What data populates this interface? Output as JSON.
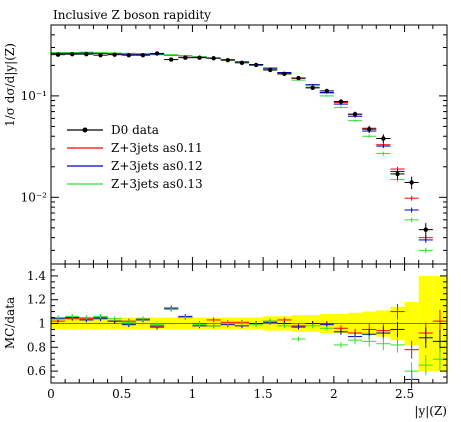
{
  "chart_data": [
    {
      "type": "scatter",
      "title": "Inclusive Z boson rapidity",
      "xlabel": "",
      "ylabel": "1/σ dσ/d|y|(Z)",
      "yscale": "log",
      "xlim": [
        0,
        2.8
      ],
      "ylim": [
        0.0022,
        0.5
      ],
      "y_ticks": [
        {
          "value": 0.1,
          "label": "10⁻¹"
        },
        {
          "value": 0.01,
          "label": "10⁻²"
        }
      ],
      "legend_position": "left",
      "x": [
        0.05,
        0.15,
        0.25,
        0.35,
        0.45,
        0.55,
        0.65,
        0.75,
        0.85,
        0.95,
        1.05,
        1.15,
        1.25,
        1.35,
        1.45,
        1.55,
        1.65,
        1.75,
        1.85,
        1.95,
        2.05,
        2.15,
        2.25,
        2.35,
        2.45,
        2.55,
        2.65,
        2.75
      ],
      "series": [
        {
          "name": "D0 data",
          "color": "#000000",
          "marker": "dot",
          "values": [
            0.255,
            0.258,
            0.258,
            0.252,
            0.255,
            0.252,
            0.252,
            0.262,
            0.228,
            0.238,
            0.238,
            0.235,
            0.225,
            0.212,
            0.202,
            0.18,
            0.165,
            0.15,
            0.12,
            0.112,
            0.088,
            0.066,
            0.047,
            0.038,
            0.017,
            0.014,
            0.0048,
            null
          ]
        },
        {
          "name": "Z+3jets as0.11",
          "color": "#ff0000",
          "marker": "cross",
          "values": [
            0.262,
            0.262,
            0.264,
            0.262,
            0.26,
            0.258,
            0.257,
            0.255,
            0.252,
            0.248,
            0.243,
            0.236,
            0.227,
            0.216,
            0.203,
            0.187,
            0.169,
            0.149,
            0.128,
            0.107,
            0.086,
            0.066,
            0.048,
            0.033,
            0.019,
            0.0098,
            0.004,
            null
          ]
        },
        {
          "name": "Z+3jets as0.12",
          "color": "#0000cc",
          "marker": "cross",
          "values": [
            0.264,
            0.264,
            0.266,
            0.263,
            0.261,
            0.259,
            0.258,
            0.256,
            0.253,
            0.249,
            0.244,
            0.237,
            0.228,
            0.217,
            0.204,
            0.188,
            0.17,
            0.15,
            0.129,
            0.108,
            0.083,
            0.063,
            0.045,
            0.032,
            0.018,
            0.0075,
            0.0038,
            null
          ]
        },
        {
          "name": "Z+3jets as0.13",
          "color": "#33dd33",
          "marker": "cross",
          "values": [
            0.268,
            0.268,
            0.27,
            0.267,
            0.265,
            0.263,
            0.262,
            0.259,
            0.255,
            0.25,
            0.244,
            0.236,
            0.226,
            0.214,
            0.2,
            0.183,
            0.164,
            0.143,
            0.122,
            0.1,
            0.077,
            0.057,
            0.04,
            0.027,
            0.015,
            0.006,
            0.003,
            null
          ]
        }
      ]
    },
    {
      "type": "scatter",
      "xlabel": "|y|(Z)",
      "ylabel": "MC/data",
      "xlim": [
        0,
        2.8
      ],
      "ylim": [
        0.5,
        1.5
      ],
      "x_ticks": [
        {
          "value": 0,
          "label": "0"
        },
        {
          "value": 0.5,
          "label": "0.5"
        },
        {
          "value": 1,
          "label": "1"
        },
        {
          "value": 1.5,
          "label": "1.5"
        },
        {
          "value": 2,
          "label": "2"
        },
        {
          "value": 2.5,
          "label": "2.5"
        }
      ],
      "y_ticks": [
        {
          "value": 0.6,
          "label": "0.6"
        },
        {
          "value": 0.8,
          "label": "0.8"
        },
        {
          "value": 1,
          "label": "1"
        },
        {
          "value": 1.2,
          "label": "1.2"
        },
        {
          "value": 1.4,
          "label": "1.4"
        }
      ],
      "data_uncertainty_band_color": "#ffff00",
      "data_uncertainty_halfwidth": [
        0.05,
        0.05,
        0.05,
        0.05,
        0.05,
        0.05,
        0.05,
        0.05,
        0.05,
        0.05,
        0.05,
        0.05,
        0.05,
        0.05,
        0.05,
        0.06,
        0.06,
        0.07,
        0.07,
        0.08,
        0.08,
        0.09,
        0.1,
        0.11,
        0.14,
        0.18,
        0.4,
        0.4
      ],
      "x": [
        0.05,
        0.15,
        0.25,
        0.35,
        0.45,
        0.55,
        0.65,
        0.75,
        0.85,
        0.95,
        1.05,
        1.15,
        1.25,
        1.35,
        1.45,
        1.55,
        1.65,
        1.75,
        1.85,
        1.95,
        2.05,
        2.15,
        2.25,
        2.35,
        2.45,
        2.55,
        2.65,
        2.75
      ],
      "series": [
        {
          "name": "Z+3jets as0.11",
          "color": "#ff0000",
          "values": [
            1.02,
            1.04,
            1.04,
            1.05,
            1.02,
            1.02,
            1.04,
            0.98,
            1.12,
            1.05,
            1.0,
            1.03,
            1.01,
            1.01,
            1.0,
            1.02,
            1.03,
            0.98,
            1.0,
            1.0,
            0.96,
            0.92,
            0.95,
            0.94,
            1.1,
            0.78,
            0.92,
            1.02
          ]
        },
        {
          "name": "Z+3jets as0.12",
          "color": "#0000cc",
          "values": [
            1.04,
            1.05,
            1.03,
            1.04,
            1.02,
            0.99,
            1.03,
            0.97,
            1.13,
            1.06,
            0.98,
            0.98,
            0.99,
            0.98,
            1.0,
            1.01,
            1.0,
            0.97,
            1.0,
            0.99,
            0.93,
            0.89,
            0.91,
            0.92,
            0.95,
            0.53,
            0.88,
            0.85
          ]
        },
        {
          "name": "Z+3jets as0.13",
          "color": "#33dd33",
          "values": [
            1.05,
            1.06,
            1.05,
            1.06,
            1.04,
            1.01,
            1.04,
            0.99,
            1.12,
            1.05,
            0.99,
            0.98,
            1.0,
            1.0,
            0.99,
            1.02,
            0.98,
            0.87,
            0.98,
            0.96,
            0.82,
            0.86,
            0.85,
            0.83,
            0.82,
            0.6,
            0.65,
            0.7
          ]
        }
      ]
    }
  ]
}
